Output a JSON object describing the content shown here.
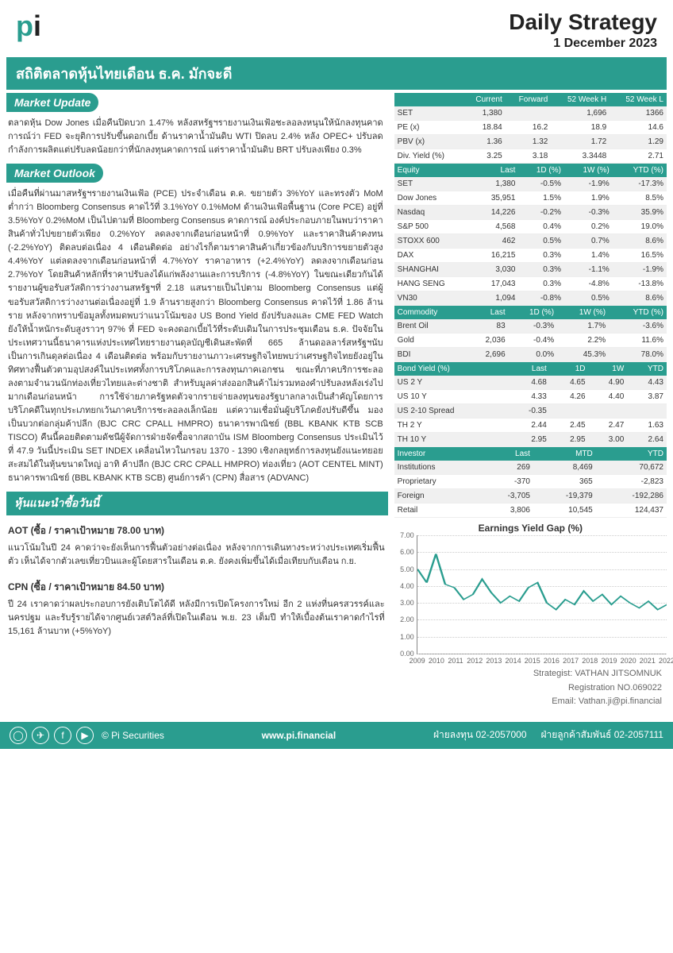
{
  "header": {
    "logo_p": "p",
    "logo_i": "i",
    "title": "Daily Strategy",
    "date": "1 December 2023"
  },
  "headline": "สถิติตลาดหุ้นไทยเดือน ธ.ค. มักจะดี",
  "market_update": {
    "title": "Market Update",
    "text": "ตลาดหุ้น Dow Jones เมื่อคืนปิดบวก 1.47% หลังสหรัฐฯรายงานเงินเฟ้อชะลอลงหนุนให้นักลงทุนคาดการณ์ว่า FED จะยุติการปรับขึ้นดอกเบี้ย ด้านราคาน้ำมันดิบ WTI ปิดลบ 2.4% หลัง OPEC+ ปรับลดกำลังการผลิตแต่ปรับลดน้อยกว่าที่นักลงทุนคาดการณ์ แต่ราคาน้ำมันดิบ BRT ปรับลงเพียง 0.3%"
  },
  "market_outlook": {
    "title": "Market Outlook",
    "text": "เมื่อคืนที่ผ่านมาสหรัฐฯรายงานเงินเฟ้อ (PCE) ประจำเดือน ต.ค. ขยายตัว 3%YoY และทรงตัว MoM ต่ำกว่า Bloomberg Consensus คาดไว้ที่ 3.1%YoY 0.1%MoM ด้านเงินเฟ้อพื้นฐาน (Core PCE) อยู่ที่ 3.5%YoY 0.2%MoM เป็นไปตามที่ Bloomberg Consensus คาดการณ์ องค์ประกอบภายในพบว่าราคาสินค้าทั่วไปขยายตัวเพียง 0.2%YoY ลดลงจากเดือนก่อนหน้าที่ 0.9%YoY และราคาสินค้าคงทน (-2.2%YoY) ติดลบต่อเนื่อง 4 เดือนติดต่อ อย่างไรก็ตามราคาสินค้าเกี่ยวข้องกับบริการขยายตัวสูง 4.4%YoY แต่ลดลงจากเดือนก่อนหน้าที่ 4.7%YoY ราคาอาหาร (+2.4%YoY) ลดลงจากเดือนก่อน 2.7%YoY โดยสินค้าหลักที่ราคาปรับลงได้แก่พลังงานและการบริการ (-4.8%YoY) ในขณะเดียวกันได้รายงานผู้ขอรับสวัสดิการว่างงานสหรัฐฯที่ 2.18 แสนรายเป็นไปตาม Bloomberg Consensus แต่ผู้ขอรับสวัสดิการว่างงานต่อเนื่องอยู่ที่ 1.9 ล้านรายสูงกว่า Bloomberg Consensus คาดไว้ที่ 1.86 ล้านราย หลังจากทราบข้อมูลทั้งหมดพบว่าแนวโน้มของ US Bond Yield ยังปรับลงและ CME FED Watch ยังให้น้ำหนักระดับสูงราวๆ 97% ที่ FED จะคงดอกเบี้ยไว้ที่ระดับเดิมในการประชุมเดือน ธ.ค. ปัจจัยในประเทศวานนี้ธนาคารแห่งประเทศไทยรายงานดุลบัญชีเดินสะพัดที่ 665 ล้านดอลลาร์สหรัฐฯนับเป็นการเกินดุลต่อเนื่อง 4 เดือนติดต่อ พร้อมกับรายงานภาวะเศรษฐกิจไทยพบว่าเศรษฐกิจไทยยังอยู่ในทิศทางฟื้นตัวตามอุปสงค์ในประเทศทั้งการบริโภคและการลงทุนภาคเอกชน ขณะที่ภาคบริการชะลอลงตามจำนวนนักท่องเที่ยวไทยและต่างชาติ สำหรับมูลค่าส่งออกสินค้าไม่รวมทองคำปรับลงหลังเร่งไปมากเดือนก่อนหน้า การใช้จ่ายภาครัฐหดตัวจากรายจ่ายลงทุนของรัฐบาลกลางเป็นสำคัญโดยการบริโภคดีในทุกประเภทยกเว้นภาคบริการชะลอลงเล็กน้อย แต่ความเชื่อมั่นผู้บริโภคยังปรับดีขึ้น มองเป็นบวกต่อกลุ่มค้าปลีก (BJC CRC CPALL HMPRO) ธนาคารพาณิชย์ (BBL KBANK KTB SCB TISCO) คืนนี้คอยติดตามดัชนีผู้จัดการฝ่ายจัดซื้อจากสถาบัน ISM Bloomberg Consensus ประเมินไว้ที่ 47.9 วันนี้ประเมิน SET INDEX เคลื่อนไหวในกรอบ 1370 - 1390 เชิงกลยุทธ์การลงทุนยังแนะทยอยสะสมได้ในหุ้นขนาดใหญ่ อาทิ ค้าปลีก (BJC CRC CPALL HMPRO) ท่องเที่ยว (AOT CENTEL MINT) ธนาคารพาณิชย์ (BBL KBANK KTB SCB) ศูนย์การค้า (CPN) สื่อสาร (ADVANC)"
  },
  "recommend": {
    "title": "หุ้นแนะนำซื้อวันนี้",
    "items": [
      {
        "name": "AOT (ซื้อ / ราคาเป้าหมาย 78.00 บาท)",
        "text": "แนวโน้มในปี 24 คาดว่าจะยังเห็นการฟื้นตัวอย่างต่อเนื่อง หลังจากการเดินทางระหว่างประเทศเริ่มฟื้นตัว เห็นได้จากตัวเลขเที่ยวบินและผู้โดยสารในเดือน ต.ค. ยังคงเพิ่มขึ้นได้เมื่อเทียบกับเดือน ก.ย."
      },
      {
        "name": "CPN (ซื้อ / ราคาเป้าหมาย 84.50 บาท)",
        "text": "ปี 24 เราคาดว่าผลประกอบการยังเติบโตได้ดี หลังมีการเปิดโครงการใหม่ อีก 2 แห่งที่นครสวรรค์และนครปฐม และรับรู้รายได้จากศูนย์เวสต์วิลล์ที่เปิดในเดือน พ.ย. 23 เต็มปี ทำให้เบื้องต้นเราคาดกำไรที่ 15,161 ล้านบาท (+5%YoY)"
      }
    ]
  },
  "metrics": {
    "headers": [
      "",
      "Current",
      "Forward",
      "52 Week H",
      "52 Week L"
    ],
    "rows": [
      [
        "SET",
        "1,380",
        "",
        "1,696",
        "1366"
      ],
      [
        "PE (x)",
        "18.84",
        "16.2",
        "18.9",
        "14.6"
      ],
      [
        "PBV (x)",
        "1.36",
        "1.32",
        "1.72",
        "1.29"
      ],
      [
        "Div. Yield (%)",
        "3.25",
        "3.18",
        "3.3448",
        "2.71"
      ]
    ]
  },
  "equity": {
    "headers": [
      "Equity",
      "Last",
      "1D (%)",
      "1W (%)",
      "YTD (%)"
    ],
    "rows": [
      [
        "SET",
        "1,380",
        "-0.5%",
        "-1.9%",
        "-17.3%"
      ],
      [
        "Dow Jones",
        "35,951",
        "1.5%",
        "1.9%",
        "8.5%"
      ],
      [
        "Nasdaq",
        "14,226",
        "-0.2%",
        "-0.3%",
        "35.9%"
      ],
      [
        "S&P 500",
        "4,568",
        "0.4%",
        "0.2%",
        "19.0%"
      ],
      [
        "STOXX 600",
        "462",
        "0.5%",
        "0.7%",
        "8.6%"
      ],
      [
        "DAX",
        "16,215",
        "0.3%",
        "1.4%",
        "16.5%"
      ],
      [
        "SHANGHAI",
        "3,030",
        "0.3%",
        "-1.1%",
        "-1.9%"
      ],
      [
        "HANG SENG",
        "17,043",
        "0.3%",
        "-4.8%",
        "-13.8%"
      ],
      [
        "VN30",
        "1,094",
        "-0.8%",
        "0.5%",
        "8.6%"
      ]
    ]
  },
  "commodity": {
    "headers": [
      "Commodity",
      "Last",
      "1D (%)",
      "1W (%)",
      "YTD (%)"
    ],
    "rows": [
      [
        "Brent Oil",
        "83",
        "-0.3%",
        "1.7%",
        "-3.6%"
      ],
      [
        "Gold",
        "2,036",
        "-0.4%",
        "2.2%",
        "11.6%"
      ],
      [
        "BDI",
        "2,696",
        "0.0%",
        "45.3%",
        "78.0%"
      ]
    ]
  },
  "bond": {
    "headers": [
      "Bond Yield (%)",
      "Last",
      "1D",
      "1W",
      "YTD"
    ],
    "rows": [
      [
        "US 2 Y",
        "4.68",
        "4.65",
        "4.90",
        "4.43"
      ],
      [
        "US 10 Y",
        "4.33",
        "4.26",
        "4.40",
        "3.87"
      ],
      [
        "US 2-10 Spread",
        "-0.35",
        "",
        "",
        ""
      ],
      [
        "TH 2 Y",
        "2.44",
        "2.45",
        "2.47",
        "1.63"
      ],
      [
        "TH 10 Y",
        "2.95",
        "2.95",
        "3.00",
        "2.64"
      ]
    ]
  },
  "investor": {
    "headers": [
      "Investor",
      "Last",
      "MTD",
      "YTD"
    ],
    "rows": [
      [
        "Institutions",
        "269",
        "8,469",
        "70,672"
      ],
      [
        "Proprietary",
        "-370",
        "365",
        "-2,823"
      ],
      [
        "Foreign",
        "-3,705",
        "-19,379",
        "-192,286"
      ],
      [
        "Retail",
        "3,806",
        "10,545",
        "124,437"
      ]
    ]
  },
  "chart": {
    "title": "Earnings Yield Gap (%)",
    "ymin": 0,
    "ymax": 7,
    "ystep": 1,
    "xlabels": [
      "2009",
      "2010",
      "2011",
      "2012",
      "2013",
      "2014",
      "2015",
      "2016",
      "2017",
      "2018",
      "2019",
      "2020",
      "2021",
      "2022"
    ],
    "line_color": "#2a9d8f",
    "points": [
      5.0,
      4.2,
      5.9,
      4.1,
      3.9,
      3.2,
      3.5,
      4.4,
      3.6,
      3.0,
      3.4,
      3.1,
      3.9,
      4.2,
      3.0,
      2.6,
      3.2,
      2.9,
      3.7,
      3.1,
      3.5,
      2.9,
      3.4,
      3.0,
      2.7,
      3.1,
      2.6,
      2.9
    ]
  },
  "strategist": {
    "line1": "Strategist: VATHAN JITSOMNUK",
    "line2": "Registration NO.069022",
    "line3": "Email: Vathan.ji@pi.financial"
  },
  "footer": {
    "company": "© Pi Securities",
    "web": "www.pi.financial",
    "phone1_label": "ฝ่ายลงทุน",
    "phone1": "02-2057000",
    "phone2_label": "ฝ่ายลูกค้าสัมพันธ์",
    "phone2": "02-2057111"
  },
  "colors": {
    "teal": "#2a9d8f"
  }
}
